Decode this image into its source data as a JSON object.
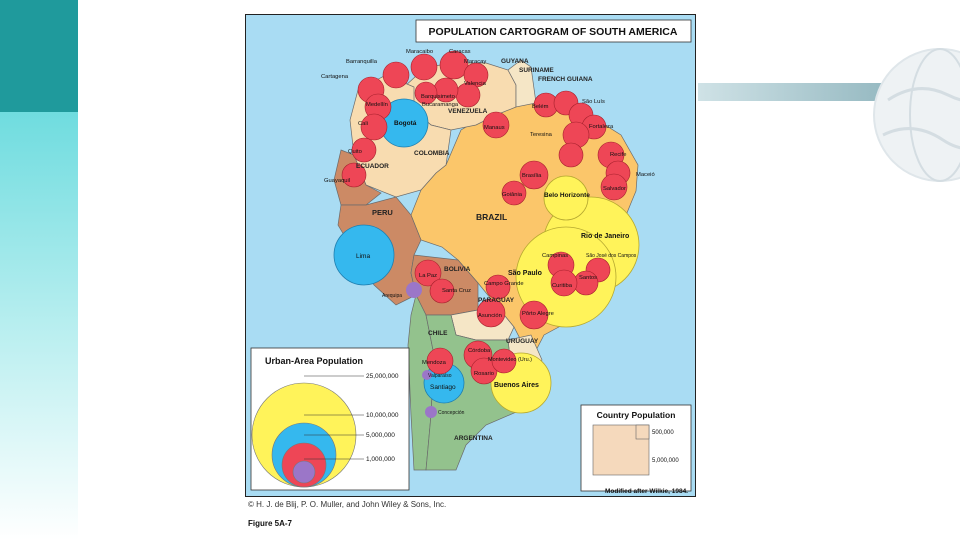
{
  "map": {
    "title": "POPULATION CARTOGRAM OF SOUTH AMERICA",
    "source_note": "Modified after Wilkie, 1984.",
    "colors": {
      "ocean": "#a9dcf3",
      "brazil": "#fbc66a",
      "colombia": "#f8dcb0",
      "venezuela": "#f8dcb0",
      "peru": "#cc8a65",
      "ecuador": "#cc8a65",
      "bolivia": "#cc8a65",
      "paraguay": "#f5e6c6",
      "uruguay": "#f5e6c6",
      "chile": "#93c28d",
      "argentina": "#93c28d",
      "city_red": "#ee4656",
      "city_blue": "#35b8ee",
      "city_yellow": "#fff35a",
      "city_purple": "#9b76c8"
    },
    "countries": [
      {
        "key": "guyana",
        "label": "GUYANA"
      },
      {
        "key": "suriname",
        "label": "SURINAME"
      },
      {
        "key": "french_guiana",
        "label": "FRENCH GUIANA"
      },
      {
        "key": "venezuela",
        "label": "VENEZUELA"
      },
      {
        "key": "colombia",
        "label": "COLOMBIA"
      },
      {
        "key": "ecuador",
        "label": "ECUADOR"
      },
      {
        "key": "peru",
        "label": "PERU"
      },
      {
        "key": "brazil",
        "label": "BRAZIL"
      },
      {
        "key": "bolivia",
        "label": "BOLIVIA"
      },
      {
        "key": "paraguay",
        "label": "PARAGUAY"
      },
      {
        "key": "chile",
        "label": "CHILE"
      },
      {
        "key": "uruguay",
        "label": "URUGUAY"
      },
      {
        "key": "argentina",
        "label": "ARGENTINA"
      }
    ],
    "cities": [
      {
        "key": "maracaibo",
        "label": "Maracaibo",
        "size": "large"
      },
      {
        "key": "caracas",
        "label": "Caracas",
        "size": "large"
      },
      {
        "key": "maracay",
        "label": "Maracay",
        "size": "small"
      },
      {
        "key": "valencia",
        "label": "Valencia",
        "size": "small"
      },
      {
        "key": "barranquilla",
        "label": "Barranquilla",
        "size": "small"
      },
      {
        "key": "cartagena",
        "label": "Cartagena",
        "size": "small"
      },
      {
        "key": "barquisimeto",
        "label": "Barquisimeto",
        "size": "small"
      },
      {
        "key": "bucaramanga",
        "label": "Bucaramanga",
        "size": "small"
      },
      {
        "key": "medellin",
        "label": "Medellín",
        "size": "large"
      },
      {
        "key": "bogota",
        "label": "Bogotá",
        "size": "xlarge"
      },
      {
        "key": "cali",
        "label": "Cali",
        "size": "large"
      },
      {
        "key": "quito",
        "label": "Quito",
        "size": "small"
      },
      {
        "key": "guayaquil",
        "label": "Guayaquil",
        "size": "large"
      },
      {
        "key": "lima",
        "label": "Lima",
        "size": "xlarge"
      },
      {
        "key": "manaus",
        "label": "Manaus",
        "size": "small"
      },
      {
        "key": "belem",
        "label": "Belém",
        "size": "large"
      },
      {
        "key": "sao_luis",
        "label": "São Luís",
        "size": "small"
      },
      {
        "key": "teresina",
        "label": "Teresina",
        "size": "small"
      },
      {
        "key": "fortaleza",
        "label": "Fortaleza",
        "size": "large"
      },
      {
        "key": "recife",
        "label": "Recife",
        "size": "large"
      },
      {
        "key": "maceio",
        "label": "Maceió",
        "size": "small"
      },
      {
        "key": "salvador",
        "label": "Salvador",
        "size": "large"
      },
      {
        "key": "brasilia",
        "label": "Brasília",
        "size": "large"
      },
      {
        "key": "goiania",
        "label": "Goiânia",
        "size": "small"
      },
      {
        "key": "belo_horizonte",
        "label": "Belo Horizonte",
        "size": "xlarge"
      },
      {
        "key": "rio_de_janeiro",
        "label": "Rio de Janeiro",
        "size": "xxlarge"
      },
      {
        "key": "sao_paulo",
        "label": "São Paulo",
        "size": "xxlarge"
      },
      {
        "key": "campinas",
        "label": "Campinas",
        "size": "large"
      },
      {
        "key": "sao_jose_dos_campos",
        "label": "São José dos Campos",
        "size": "small"
      },
      {
        "key": "santos",
        "label": "Santos",
        "size": "small"
      },
      {
        "key": "curitiba",
        "label": "Curitiba",
        "size": "large"
      },
      {
        "key": "la_paz",
        "label": "La Paz",
        "size": "large"
      },
      {
        "key": "santa_cruz",
        "label": "Santa Cruz",
        "size": "small"
      },
      {
        "key": "arequipa",
        "label": "Arequipa",
        "size": "tiny"
      },
      {
        "key": "campo_grande",
        "label": "Campo Grande",
        "size": "small"
      },
      {
        "key": "asuncion",
        "label": "Asunción",
        "size": "large"
      },
      {
        "key": "porto_alegre",
        "label": "Pôrto Alegre",
        "size": "large"
      },
      {
        "key": "cordoba",
        "label": "Córdoba",
        "size": "large"
      },
      {
        "key": "mendoza",
        "label": "Mendoza",
        "size": "large"
      },
      {
        "key": "rosario",
        "label": "Rosario",
        "size": "large"
      },
      {
        "key": "montevideo",
        "label": "Montevideo (Uru.)",
        "size": "large"
      },
      {
        "key": "valparaiso",
        "label": "Valparaíso",
        "size": "tiny"
      },
      {
        "key": "santiago",
        "label": "Santiago",
        "size": "xlarge"
      },
      {
        "key": "buenos_aires",
        "label": "Buenos Aires",
        "size": "xxlarge"
      },
      {
        "key": "concepcion",
        "label": "Concepción",
        "size": "tiny"
      }
    ],
    "legend_urban": {
      "title": "Urban-Area Population",
      "levels": [
        "25,000,000",
        "10,000,000",
        "5,000,000",
        "1,000,000"
      ]
    },
    "legend_country": {
      "title": "Country Population",
      "levels": [
        "500,000",
        "5,000,000"
      ]
    }
  },
  "credit": "© H. J. de Blij, P. O. Muller, and John Wiley & Sons, Inc.",
  "figure_label": "Figure 5A-7"
}
